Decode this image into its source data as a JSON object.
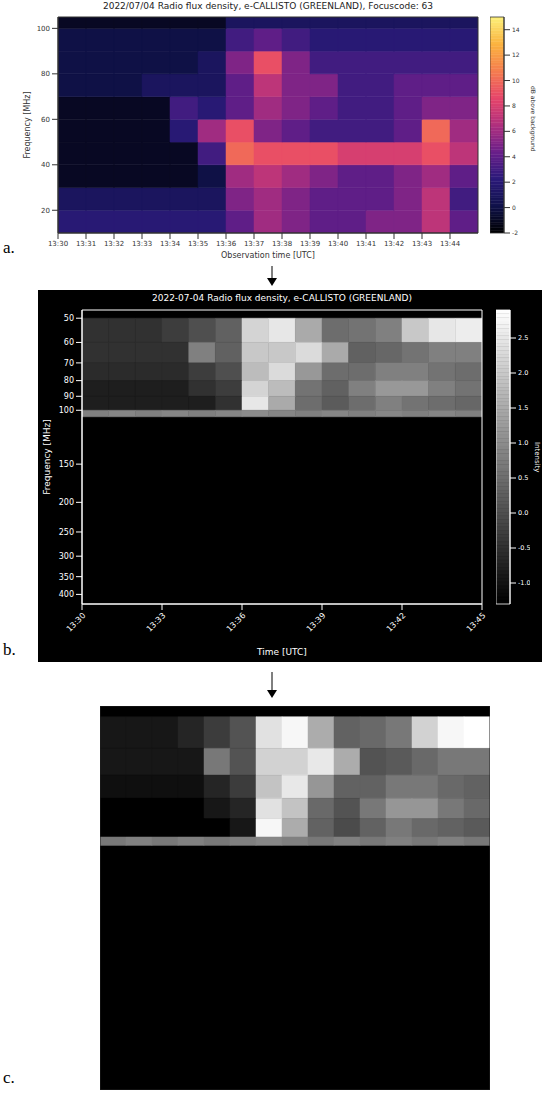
{
  "chart_data": [
    {
      "type": "heatmap",
      "panel_label": "a.",
      "title": "2022/07/04 Radio flux density, e-CALLISTO (GREENLAND), Focuscode: 63",
      "x_label": "Observation time [UTC]",
      "y_label": "Frequency [MHz]",
      "color": "magma",
      "xlim": [
        810,
        825
      ],
      "xticks": [
        {
          "value": 810,
          "label": "13:30"
        },
        {
          "value": 811,
          "label": "13:31"
        },
        {
          "value": 812,
          "label": "13:32"
        },
        {
          "value": 813,
          "label": "13:33"
        },
        {
          "value": 814,
          "label": "13:34"
        },
        {
          "value": 815,
          "label": "13:35"
        },
        {
          "value": 816,
          "label": "13:36"
        },
        {
          "value": 817,
          "label": "13:37"
        },
        {
          "value": 818,
          "label": "13:38"
        },
        {
          "value": 819,
          "label": "13:39"
        },
        {
          "value": 820,
          "label": "13:40"
        },
        {
          "value": 821,
          "label": "13:41"
        },
        {
          "value": 822,
          "label": "13:42"
        },
        {
          "value": 823,
          "label": "13:43"
        },
        {
          "value": 824,
          "label": "13:44"
        }
      ],
      "ylim": [
        10,
        105
      ],
      "yticks": [
        20,
        40,
        60,
        80,
        100
      ],
      "x_edges": [
        810,
        811,
        812,
        813,
        814,
        815,
        816,
        817,
        818,
        819,
        820,
        821,
        822,
        823,
        824,
        825
      ],
      "y_edges": [
        10,
        20,
        30,
        40,
        50,
        60,
        70,
        80,
        90,
        100,
        105
      ],
      "cells": [
        [
          2,
          2,
          2,
          2,
          2,
          2,
          4,
          6,
          5,
          4,
          4,
          5,
          5,
          7,
          4
        ],
        [
          1,
          1,
          1,
          1,
          1,
          1,
          5,
          6,
          5,
          4,
          4,
          4,
          5,
          7,
          3
        ],
        [
          -1,
          -1,
          -1,
          -1,
          -1,
          0,
          6,
          7,
          6,
          5,
          4,
          4,
          5,
          6,
          4
        ],
        [
          -1,
          -1,
          -1,
          -1,
          -1,
          3,
          10,
          9,
          9,
          9,
          8,
          8,
          8,
          9,
          7
        ],
        [
          -1,
          -1,
          -1,
          -1,
          2,
          6,
          9,
          5,
          4,
          3,
          3,
          3,
          4,
          10,
          6
        ],
        [
          -1,
          -1,
          -1,
          -1,
          3,
          2,
          4,
          6,
          5,
          4,
          3,
          3,
          4,
          5,
          5
        ],
        [
          0,
          0,
          0,
          1,
          1,
          1,
          4,
          7,
          5,
          5,
          3,
          3,
          4,
          4,
          4
        ],
        [
          0,
          0,
          0,
          0,
          0,
          1,
          5,
          9,
          5,
          3,
          3,
          3,
          3,
          3,
          3
        ],
        [
          0,
          0,
          0,
          0,
          0,
          0,
          3,
          4,
          3,
          2,
          2,
          2,
          2,
          2,
          2
        ],
        [
          -1,
          -1,
          -1,
          -1,
          -1,
          -1,
          1,
          1,
          1,
          1,
          1,
          1,
          1,
          1,
          1
        ]
      ],
      "colorbar": {
        "label": "dB above background",
        "range": [
          -2,
          15
        ],
        "ticks": [
          -2,
          0,
          2,
          4,
          6,
          8,
          10,
          12,
          14
        ]
      }
    },
    {
      "type": "heatmap",
      "panel_label": "b.",
      "title": "2022-07-04 Radio flux density, e-CALLISTO (GREENLAND)",
      "x_label": "Time [UTC]",
      "y_label": "Frequency [MHz]",
      "color": "gray",
      "log": "y",
      "xlim": [
        810,
        825
      ],
      "xticks": [
        {
          "value": 810,
          "label": "13:30"
        },
        {
          "value": 813,
          "label": "13:33"
        },
        {
          "value": 816,
          "label": "13:36"
        },
        {
          "value": 819,
          "label": "13:39"
        },
        {
          "value": 822,
          "label": "13:42"
        },
        {
          "value": 825,
          "label": "13:45"
        }
      ],
      "ylim": [
        430,
        47
      ],
      "yticks": [
        50,
        60,
        70,
        80,
        90,
        100,
        150,
        200,
        250,
        300,
        350,
        400
      ],
      "x_edges": [
        810,
        811,
        812,
        813,
        814,
        815,
        816,
        817,
        818,
        819,
        820,
        821,
        822,
        823,
        824,
        825
      ],
      "y_edges": [
        50,
        60,
        70,
        80,
        90,
        100,
        105
      ],
      "cells": [
        [
          -0.5,
          -0.5,
          -0.5,
          -0.3,
          0,
          0.3,
          2.2,
          2.5,
          1.5,
          0.5,
          0.6,
          0.8,
          2,
          2.5,
          2.6
        ],
        [
          -0.5,
          -0.5,
          -0.5,
          -0.5,
          0.8,
          0.3,
          2,
          2,
          2.3,
          1.5,
          0.3,
          0.4,
          0.6,
          0.8,
          0.8
        ],
        [
          -0.6,
          -0.6,
          -0.6,
          -0.6,
          -0.3,
          0,
          1.8,
          2.3,
          1.2,
          0.5,
          0.5,
          0.8,
          0.8,
          0.6,
          0.5
        ],
        [
          -0.8,
          -0.8,
          -0.8,
          -0.8,
          -0.5,
          -0.3,
          2.2,
          1.8,
          0.6,
          0.3,
          0.8,
          1.2,
          1.2,
          0.8,
          0.6
        ],
        [
          -0.8,
          -0.8,
          -0.8,
          -0.8,
          -0.8,
          -0.5,
          2.5,
          1.5,
          0.5,
          0.2,
          0.5,
          0.8,
          0.6,
          0.5,
          0.4
        ],
        [
          0.8,
          0.9,
          0.8,
          0.9,
          0.8,
          0.9,
          1,
          0.9,
          0.8,
          0.9,
          0.8,
          0.9,
          0.8,
          0.9,
          0.8
        ]
      ],
      "colorbar": {
        "label": "Intensity",
        "range": [
          -1.3,
          2.9
        ],
        "ticks": [
          {
            "value": -1,
            "label": "-1.0"
          },
          {
            "value": -0.5,
            "label": "-0.5"
          },
          {
            "value": 0,
            "label": "0.0"
          },
          {
            "value": 0.5,
            "label": "0.5"
          },
          {
            "value": 1,
            "label": "1.0"
          },
          {
            "value": 1.5,
            "label": "1.5"
          },
          {
            "value": 2,
            "label": "2.0"
          },
          {
            "value": 2.5,
            "label": "2.5"
          }
        ]
      }
    },
    {
      "type": "heatmap",
      "panel_label": "c.",
      "color": "gray",
      "log": "y",
      "tick_labels": false,
      "xlim": [
        810,
        825
      ],
      "ylim": [
        430,
        47
      ],
      "x_edges": [
        810,
        811,
        812,
        813,
        814,
        815,
        816,
        817,
        818,
        819,
        820,
        821,
        822,
        823,
        824,
        825
      ],
      "y_edges": [
        50,
        60,
        70,
        80,
        90,
        100,
        105
      ],
      "cells": [
        [
          -0.5,
          -0.5,
          -0.5,
          -0.3,
          0,
          0.3,
          2.2,
          2.5,
          1.5,
          0.5,
          0.6,
          0.8,
          2,
          2.5,
          2.6
        ],
        [
          -0.5,
          -0.5,
          -0.5,
          -0.5,
          0.8,
          0.3,
          2,
          2,
          2.3,
          1.5,
          0.3,
          0.4,
          0.6,
          0.8,
          0.8
        ],
        [
          -0.6,
          -0.6,
          -0.6,
          -0.6,
          -0.3,
          0,
          1.8,
          2.3,
          1.2,
          0.5,
          0.5,
          0.8,
          0.8,
          0.6,
          0.5
        ],
        [
          -0.8,
          -0.8,
          -0.8,
          -0.8,
          -0.5,
          -0.3,
          2.2,
          1.8,
          0.6,
          0.3,
          0.8,
          1.2,
          1.2,
          0.8,
          0.6
        ],
        [
          -0.8,
          -0.8,
          -0.8,
          -0.8,
          -0.8,
          -0.5,
          2.5,
          1.5,
          0.5,
          0.2,
          0.5,
          0.8,
          0.6,
          0.5,
          0.4
        ],
        [
          0.8,
          0.9,
          0.8,
          0.9,
          0.8,
          0.9,
          1,
          0.9,
          0.8,
          0.9,
          0.8,
          0.9,
          0.8,
          0.9,
          0.8
        ]
      ]
    }
  ]
}
